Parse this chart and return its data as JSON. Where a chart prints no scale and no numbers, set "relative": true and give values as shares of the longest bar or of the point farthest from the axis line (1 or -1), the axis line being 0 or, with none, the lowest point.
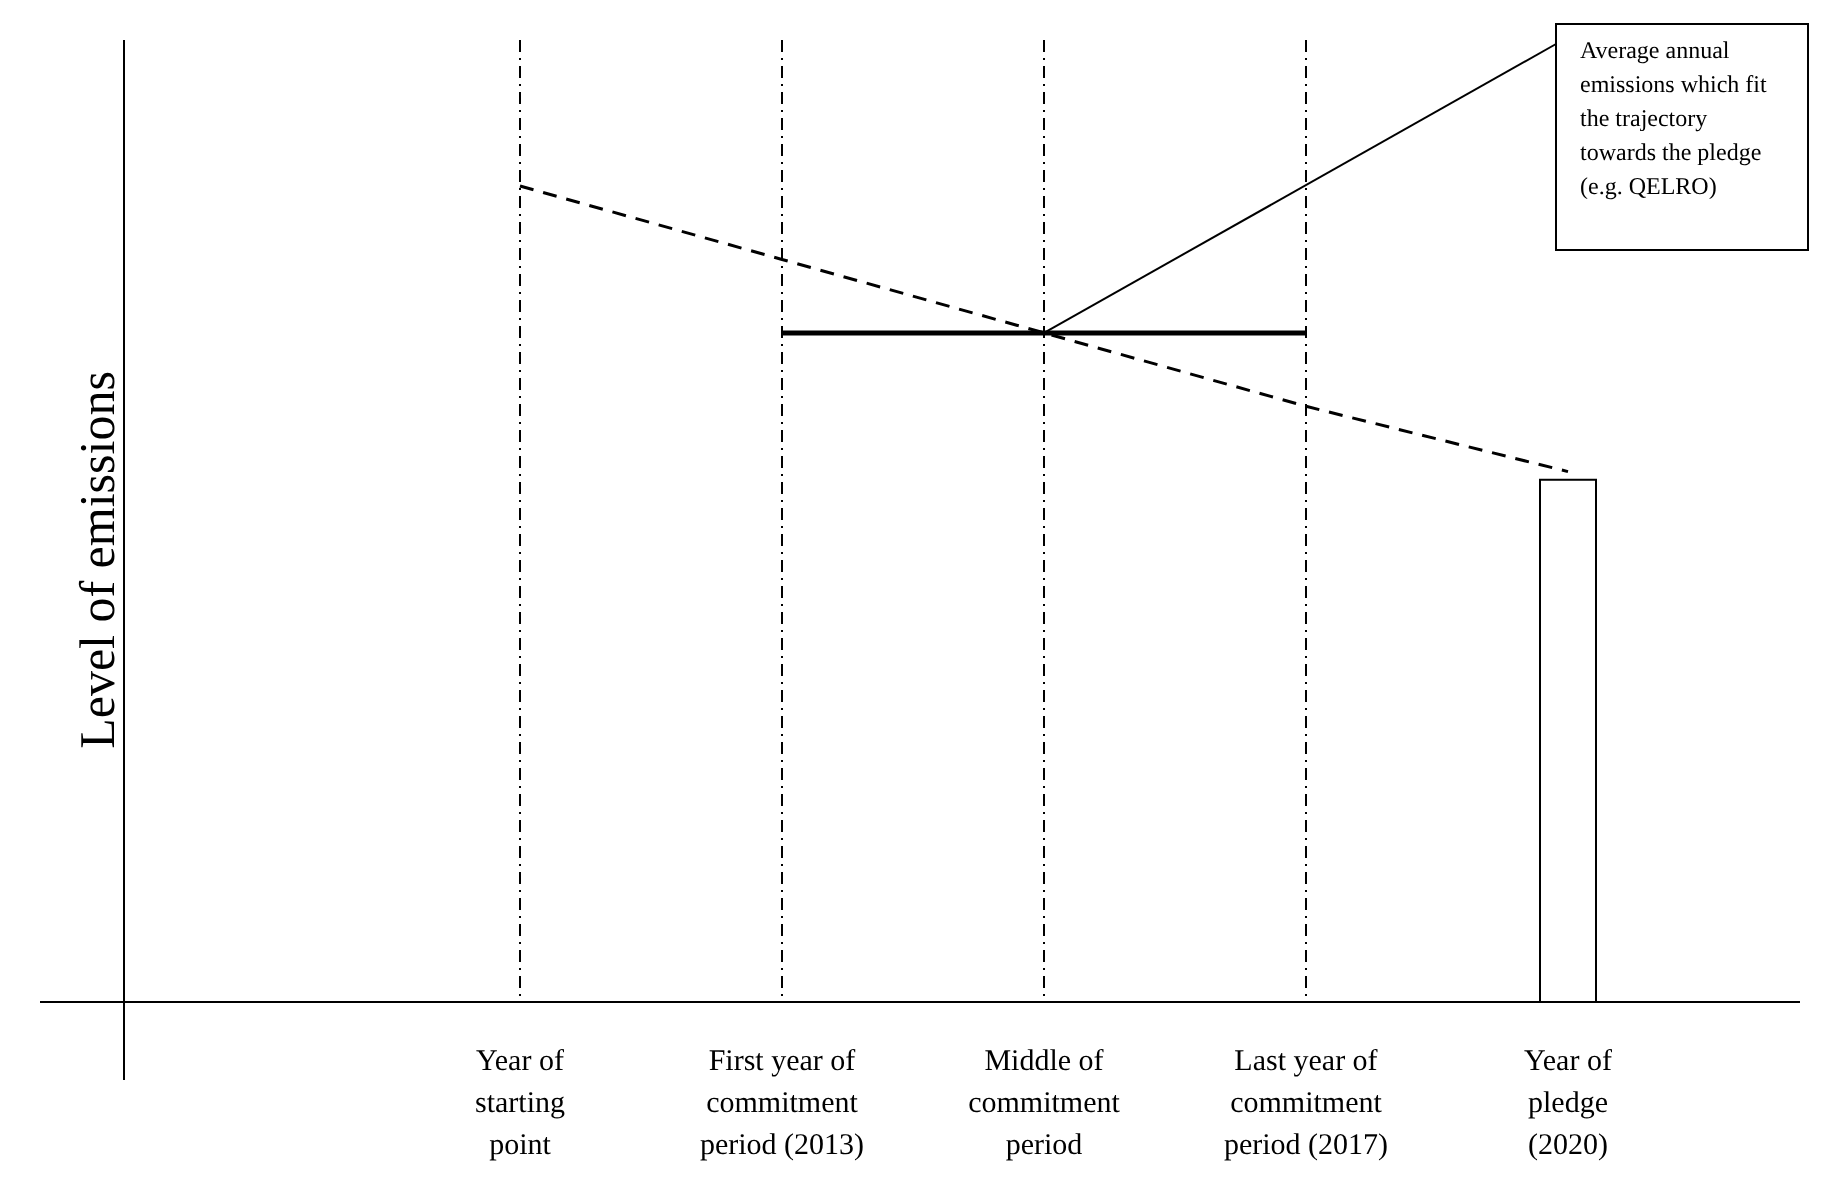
{
  "chart_data": {
    "type": "line",
    "relative": true,
    "categories": [
      "Year of\nstarting\npoint",
      "First year of\ncommitment\nperiod (2013)",
      "Middle of\ncommitment\nperiod",
      "Last year of\ncommitment\nperiod (2017)",
      "Year of\npledge\n(2020)"
    ],
    "series": [
      {
        "color": "#000000",
        "line_style": "dashed",
        "values": [
          1,
          0.91,
          0.82,
          0.73,
          0.65
        ]
      },
      {
        "color": "#000000",
        "line_style": "solid",
        "values": [
          null,
          0.82,
          0.82,
          0.82,
          null
        ]
      },
      {
        "type": "bar",
        "color": "#ffffff",
        "values": [
          null,
          null,
          null,
          null,
          0.64
        ]
      }
    ],
    "ref_lines": [
      {
        "axis": "x",
        "value": "Year of\nstarting\npoint",
        "line_style": "dashdot"
      },
      {
        "axis": "x",
        "value": "First year of\ncommitment\nperiod (2013)",
        "line_style": "dashdot"
      },
      {
        "axis": "x",
        "value": "Middle of\ncommitment\nperiod",
        "line_style": "dashdot"
      },
      {
        "axis": "x",
        "value": "Last year of\ncommitment\nperiod (2017)",
        "line_style": "dashdot"
      }
    ],
    "annotations": [
      "Level of emissions",
      {
        "text": "Average annual\nemissions which fit\nthe trajectory\ntowards the pledge\n(e.g. QELRO)",
        "x": "Middle of\ncommitment\nperiod",
        "y": 0.82
      }
    ]
  }
}
